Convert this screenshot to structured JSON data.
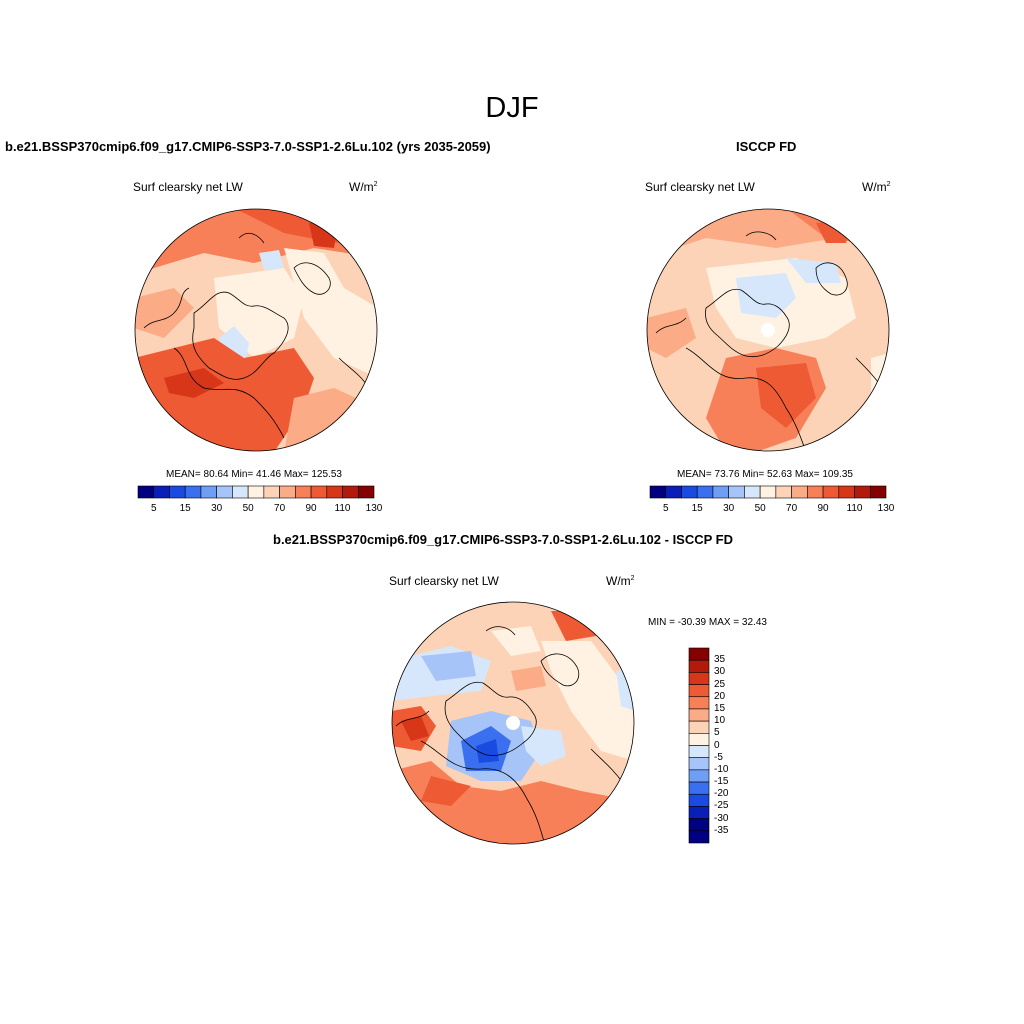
{
  "page": {
    "title": "DJF",
    "unit_base": "W/m",
    "unit_exp": "2"
  },
  "panels": [
    {
      "title": "b.e21.BSSP370cmip6.f09_g17.CMIP6-SSP3-7.0-SSP1-2.6Lu.102 (yrs 2035-2059)",
      "variable": "Surf clearsky net LW",
      "stats": "MEAN=  80.64  Min=  41.46  Max= 125.53",
      "colorbar": {
        "labels": [
          "5",
          "15",
          "30",
          "50",
          "70",
          "90",
          "110",
          "130"
        ],
        "colors": [
          "#000080",
          "#0a1fb8",
          "#1a4be0",
          "#3a70f0",
          "#6f9ef5",
          "#a6c4f7",
          "#d6e7fb",
          "#fff2e2",
          "#fcd3b6",
          "#fbab86",
          "#f88058",
          "#ee5a34",
          "#d83618",
          "#b21b0c",
          "#850000"
        ]
      }
    },
    {
      "title": "ISCCP FD",
      "variable": "Surf clearsky net LW",
      "stats": "MEAN=  73.76  Min=  52.63  Max= 109.35",
      "colorbar": {
        "labels": [
          "5",
          "15",
          "30",
          "50",
          "70",
          "90",
          "110",
          "130"
        ],
        "colors": [
          "#000080",
          "#0a1fb8",
          "#1a4be0",
          "#3a70f0",
          "#6f9ef5",
          "#a6c4f7",
          "#d6e7fb",
          "#fff2e2",
          "#fcd3b6",
          "#fbab86",
          "#f88058",
          "#ee5a34",
          "#d83618",
          "#b21b0c",
          "#850000"
        ]
      }
    },
    {
      "title": "b.e21.BSSP370cmip6.f09_g17.CMIP6-SSP3-7.0-SSP1-2.6Lu.102 - ISCCP FD",
      "variable": "Surf clearsky net LW",
      "stats": "MIN = -30.39 MAX =  32.43",
      "colorbar": {
        "labels": [
          "35",
          "30",
          "25",
          "20",
          "15",
          "10",
          "5",
          "0",
          "-5",
          "-10",
          "-15",
          "-20",
          "-25",
          "-30",
          "-35"
        ],
        "colors": [
          "#850000",
          "#b21b0c",
          "#d83618",
          "#ee5a34",
          "#f88058",
          "#fbab86",
          "#fcd3b6",
          "#fff2e2",
          "#d6e7fb",
          "#a6c4f7",
          "#6f9ef5",
          "#3a70f0",
          "#1a4be0",
          "#0a1fb8",
          "#000080",
          "#000080"
        ]
      }
    }
  ]
}
